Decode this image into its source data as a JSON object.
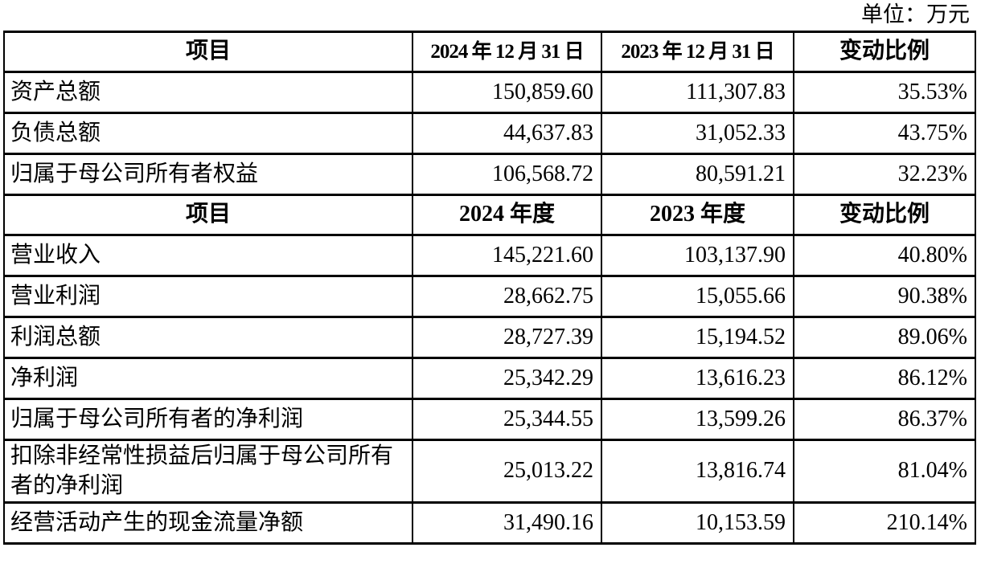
{
  "page": {
    "unit_label": "单位：万元",
    "border_color": "#000000",
    "text_color": "#000000",
    "background": "#ffffff"
  },
  "table": {
    "sections": [
      {
        "header": {
          "item": "项目",
          "col_current": "2024 年 12 月 31 日",
          "col_prior": "2023 年 12 月 31 日",
          "change": "变动比例"
        },
        "rows": [
          {
            "item": "资产总额",
            "current": "150,859.60",
            "prior": "111,307.83",
            "change": "35.53%"
          },
          {
            "item": "负债总额",
            "current": "44,637.83",
            "prior": "31,052.33",
            "change": "43.75%"
          },
          {
            "item": "归属于母公司所有者权益",
            "current": "106,568.72",
            "prior": "80,591.21",
            "change": "32.23%"
          }
        ]
      },
      {
        "header": {
          "item": "项目",
          "col_current": "2024 年度",
          "col_prior": "2023 年度",
          "change": "变动比例"
        },
        "rows": [
          {
            "item": "营业收入",
            "current": "145,221.60",
            "prior": "103,137.90",
            "change": "40.80%"
          },
          {
            "item": "营业利润",
            "current": "28,662.75",
            "prior": "15,055.66",
            "change": "90.38%"
          },
          {
            "item": "利润总额",
            "current": "28,727.39",
            "prior": "15,194.52",
            "change": "89.06%"
          },
          {
            "item": "净利润",
            "current": "25,342.29",
            "prior": "13,616.23",
            "change": "86.12%"
          },
          {
            "item": "归属于母公司所有者的净利润",
            "current": "25,344.55",
            "prior": "13,599.26",
            "change": "86.37%"
          },
          {
            "item": "扣除非经常性损益后归属于母公司所有者的净利润",
            "current": "25,013.22",
            "prior": "13,816.74",
            "change": "81.04%"
          },
          {
            "item": "经营活动产生的现金流量净额",
            "current": "31,490.16",
            "prior": "10,153.59",
            "change": "210.14%"
          }
        ]
      }
    ]
  }
}
